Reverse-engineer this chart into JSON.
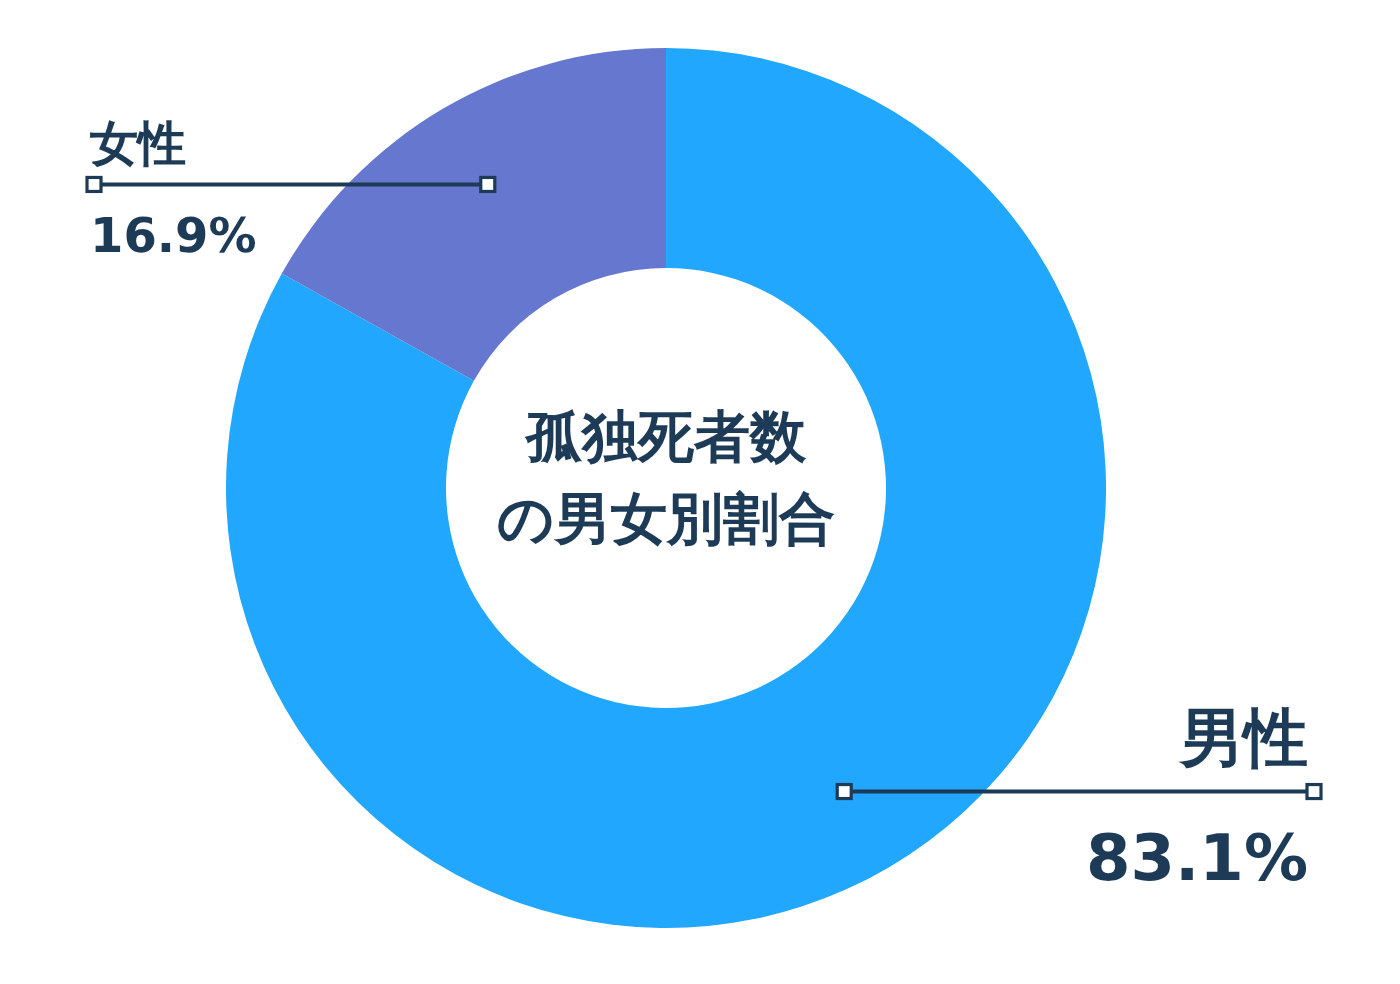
{
  "chart_data": {
    "type": "donut",
    "title": "孤独死者数の男女別割合",
    "categories": [
      "男性",
      "女性"
    ],
    "values": [
      83.1,
      16.9
    ],
    "colors": [
      "#21a7fe",
      "#6577cf"
    ],
    "value_labels": [
      "83.1%",
      "16.9%"
    ]
  }
}
